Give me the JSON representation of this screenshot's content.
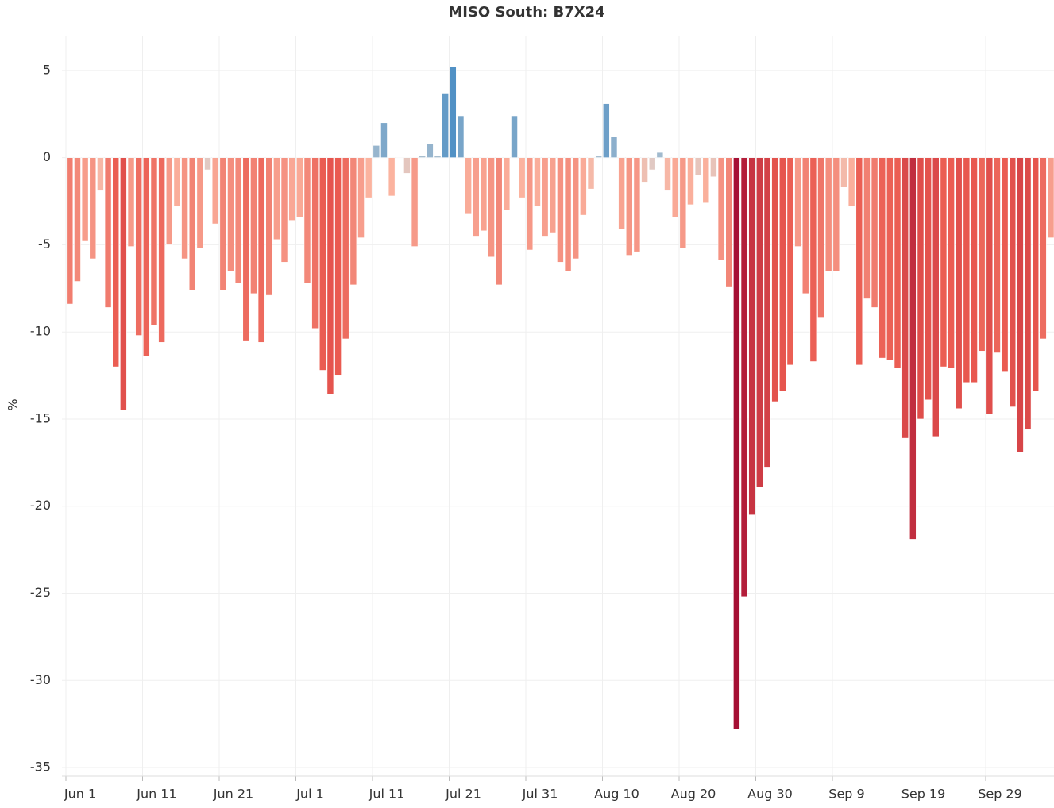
{
  "chart_data": {
    "type": "bar",
    "title": "MISO South: B7X24",
    "y_label": "%",
    "categories": [
      "Jun 1",
      null,
      null,
      null,
      null,
      null,
      null,
      null,
      null,
      null,
      "Jun 11",
      null,
      null,
      null,
      null,
      null,
      null,
      null,
      null,
      null,
      "Jun 21",
      null,
      null,
      null,
      null,
      null,
      null,
      null,
      null,
      null,
      "Jul 1",
      null,
      null,
      null,
      null,
      null,
      null,
      null,
      null,
      null,
      "Jul 11",
      null,
      null,
      null,
      null,
      null,
      null,
      null,
      null,
      null,
      "Jul 21",
      null,
      null,
      null,
      null,
      null,
      null,
      null,
      null,
      null,
      "Jul 31",
      null,
      null,
      null,
      null,
      null,
      null,
      null,
      null,
      null,
      "Aug 10",
      null,
      null,
      null,
      null,
      null,
      null,
      null,
      null,
      null,
      "Aug 20",
      null,
      null,
      null,
      null,
      null,
      null,
      null,
      null,
      null,
      "Aug 30",
      null,
      null,
      null,
      null,
      null,
      null,
      null,
      null,
      null,
      "Sep 9",
      null,
      null,
      null,
      null,
      null,
      null,
      null,
      null,
      null,
      "Sep 19",
      null,
      null,
      null,
      null,
      null,
      null,
      null,
      null,
      null,
      "Sep 29",
      null,
      null,
      null,
      null,
      null,
      null,
      null,
      null
    ],
    "values": [
      -8.4,
      -7.1,
      -4.8,
      -5.8,
      -1.9,
      -8.6,
      -12.0,
      -14.5,
      -5.1,
      -10.2,
      -11.4,
      -9.6,
      -10.6,
      -5.0,
      -2.8,
      -5.8,
      -7.6,
      -5.2,
      -0.7,
      -3.8,
      -7.6,
      -6.5,
      -7.2,
      -10.5,
      -7.8,
      -10.6,
      -7.9,
      -4.7,
      -6.0,
      -3.6,
      -3.4,
      -7.2,
      -9.8,
      -12.2,
      -13.6,
      -12.5,
      -10.4,
      -7.3,
      -4.6,
      -2.3,
      0.7,
      2.0,
      -2.2,
      0,
      -0.9,
      -5.1,
      0.1,
      0.8,
      0.1,
      3.7,
      5.2,
      2.4,
      -3.2,
      -4.5,
      -4.2,
      -5.7,
      -7.3,
      -3.0,
      2.4,
      -2.3,
      -5.3,
      -2.8,
      -4.5,
      -4.3,
      -6.0,
      -6.5,
      -5.8,
      -3.3,
      -1.8,
      0.1,
      3.1,
      1.2,
      -4.1,
      -5.6,
      -5.4,
      -1.4,
      -0.7,
      0.3,
      -1.9,
      -3.4,
      -5.2,
      -2.7,
      -1.0,
      -2.6,
      -1.1,
      -5.9,
      -7.4,
      -32.8,
      -25.2,
      -20.5,
      -18.9,
      -17.8,
      -14.0,
      -13.4,
      -11.9,
      -5.1,
      -7.8,
      -11.7,
      -9.2,
      -6.5,
      -6.5,
      -1.7,
      -2.8,
      -11.9,
      -8.1,
      -8.6,
      -11.5,
      -11.6,
      -12.1,
      -16.1,
      -21.9,
      -15.0,
      -13.9,
      -16.0,
      -12.0,
      -12.1,
      -14.4,
      -12.9,
      -12.9,
      -11.1,
      -14.7,
      -11.2,
      -12.3,
      -14.3,
      -16.9,
      -15.6,
      -13.4,
      -10.4,
      -4.6
    ],
    "ylim": [
      -35.5,
      7
    ],
    "yticks": [
      5,
      0,
      -5,
      -10,
      -15,
      -20,
      -25,
      -30,
      -35
    ],
    "grid": true,
    "colors": {
      "negative": "#a50f34",
      "mid_negative": "#ea5a50",
      "light_negative": "#fbb4a0",
      "neutral": "#d4d4d4",
      "positive": "#3b86c2"
    }
  }
}
